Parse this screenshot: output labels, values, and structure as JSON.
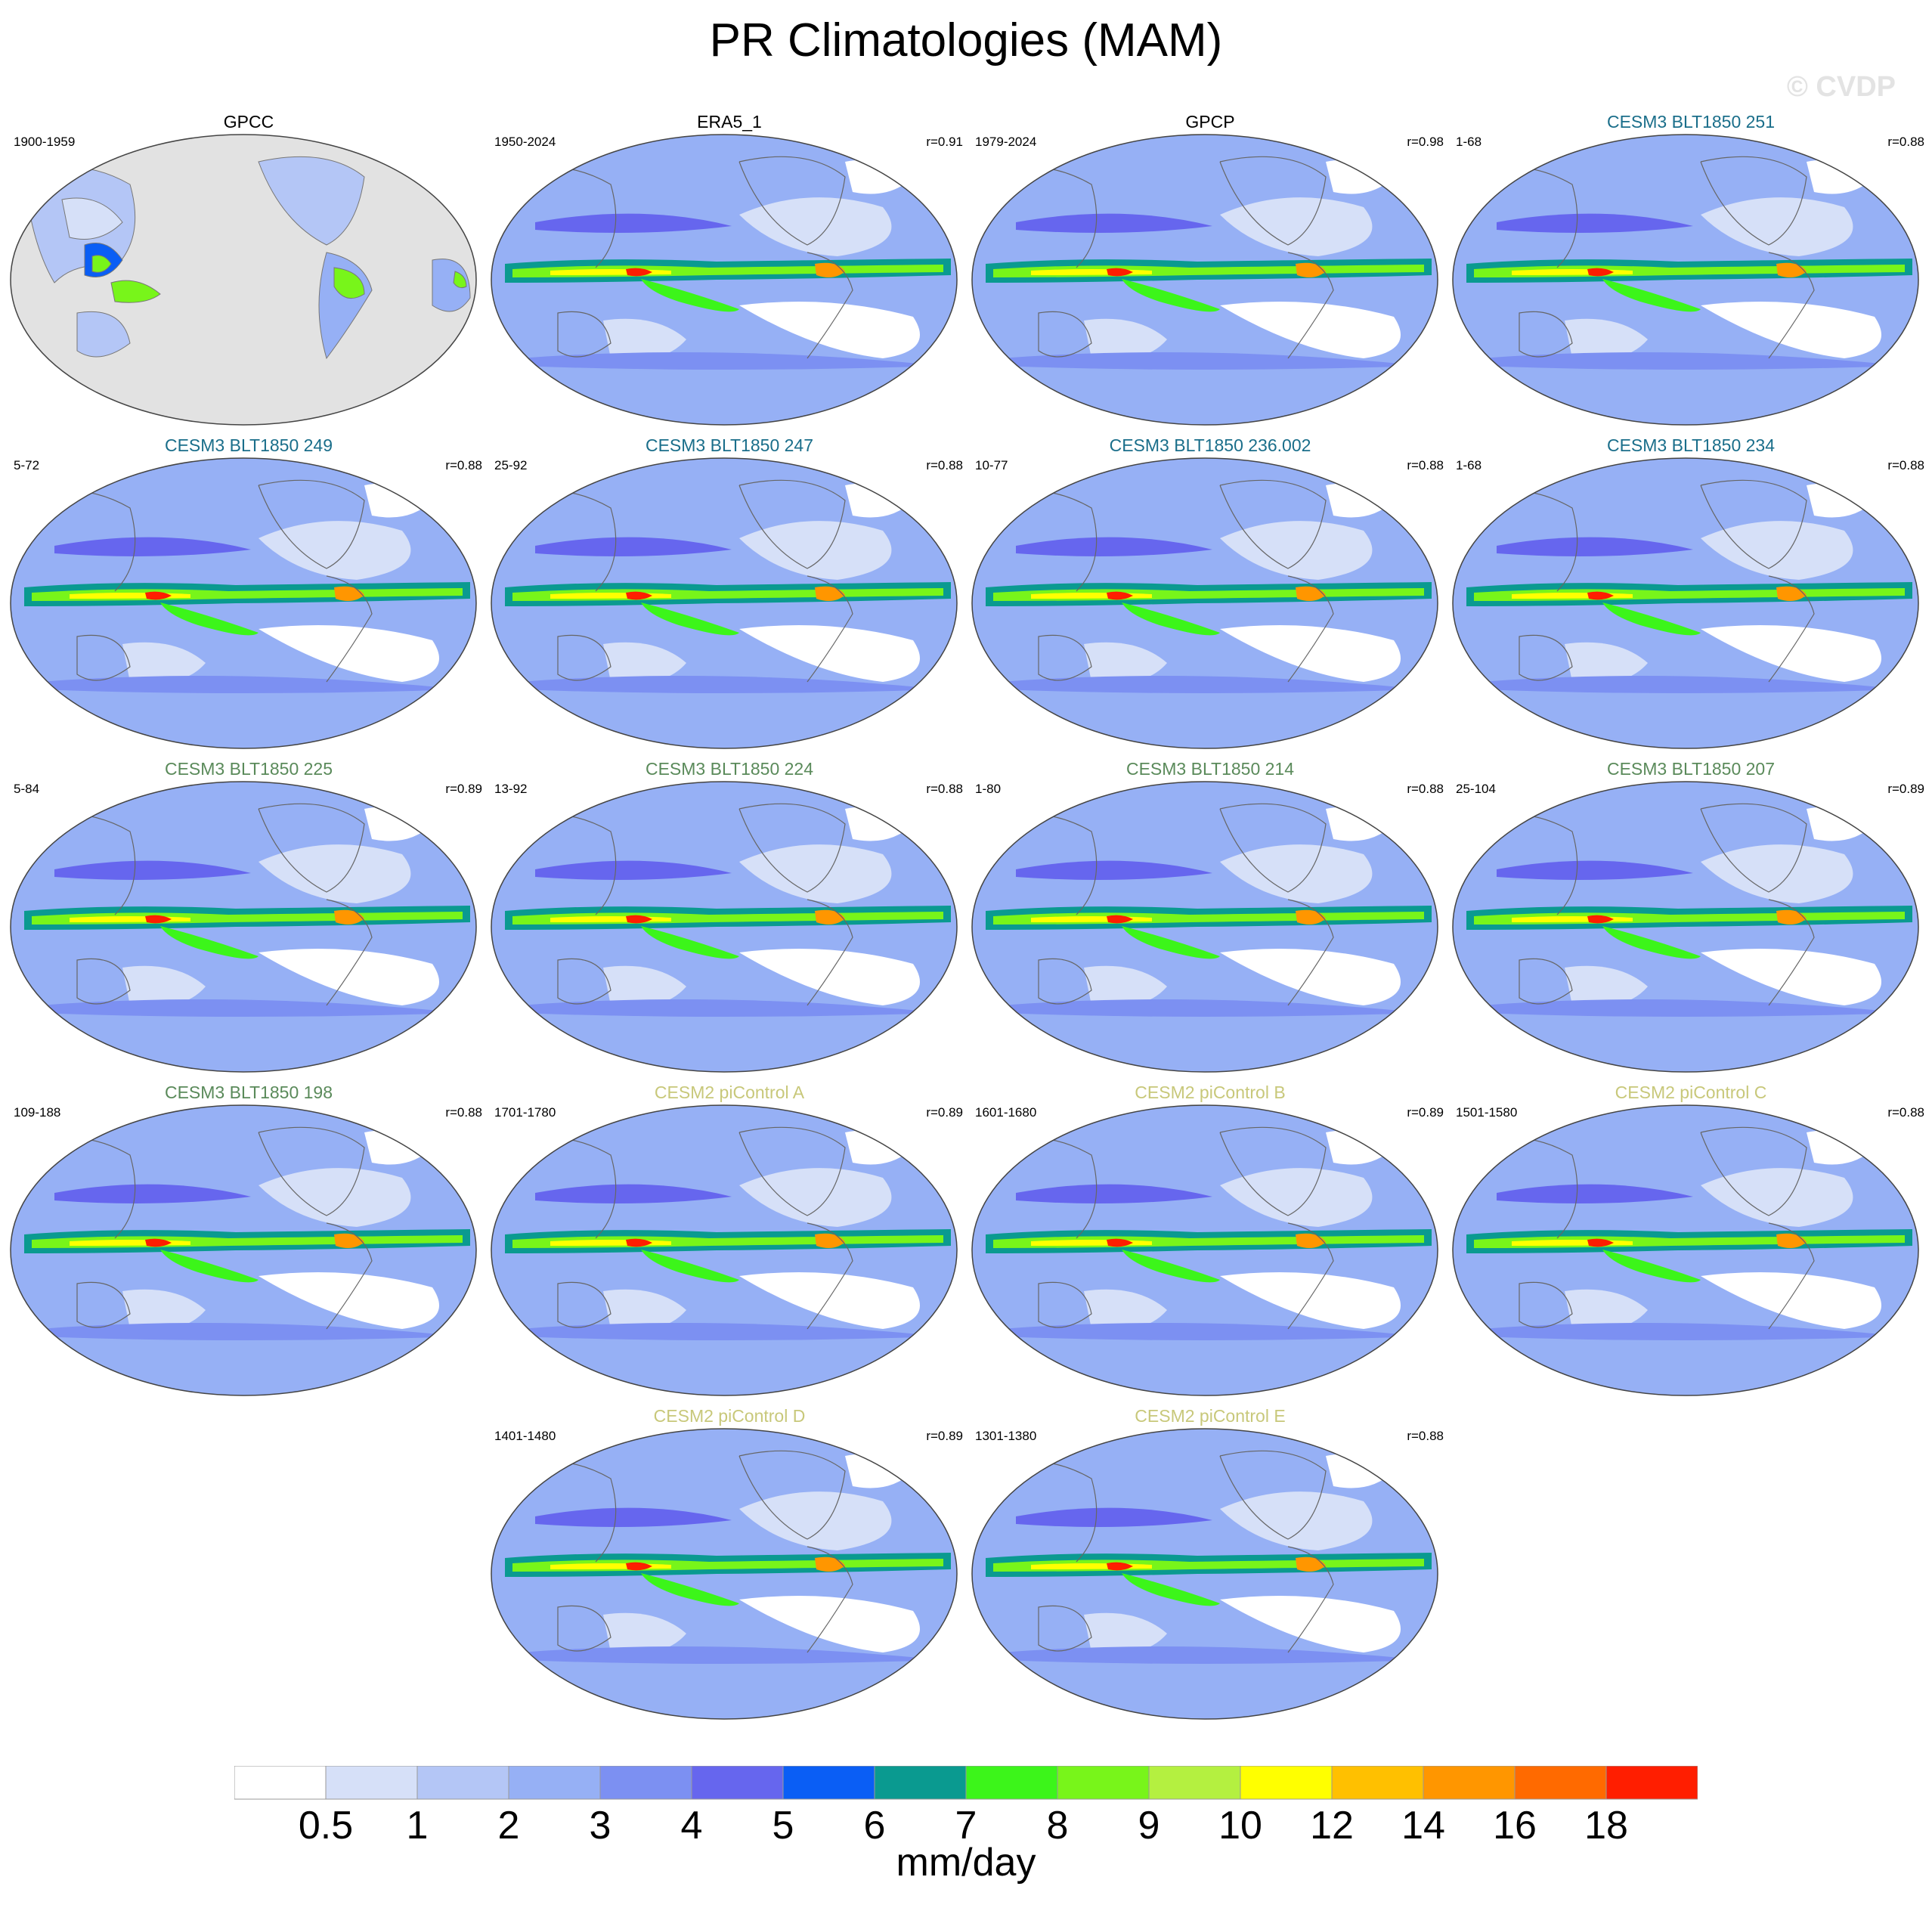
{
  "figure": {
    "title": "PR Climatologies (MAM)",
    "watermark": "© CVDP"
  },
  "chart_data": {
    "type": "heatmap",
    "title": "PR Climatologies (MAM)",
    "variable": "PR",
    "season": "MAM",
    "units": "mm/day",
    "levels": [
      "0.5",
      "1",
      "2",
      "3",
      "4",
      "5",
      "6",
      "7",
      "8",
      "9",
      "10",
      "12",
      "14",
      "16",
      "18"
    ],
    "colors": [
      "#ffffff",
      "#d6e0f8",
      "#b4c6f6",
      "#96b0f5",
      "#7c90f2",
      "#6666ee",
      "#0a5ef5",
      "#0a9a90",
      "#3cf51a",
      "#78f51a",
      "#b4f040",
      "#ffff00",
      "#ffc000",
      "#ff9600",
      "#ff6a00",
      "#ff1e00"
    ],
    "panels": [
      {
        "name": "GPCC",
        "years": "1900-1959",
        "r": "",
        "color": "#000000",
        "land_only": true
      },
      {
        "name": "ERA5_1",
        "years": "1950-2024",
        "r": "r=0.91",
        "color": "#000000"
      },
      {
        "name": "GPCP",
        "years": "1979-2024",
        "r": "r=0.98",
        "color": "#000000"
      },
      {
        "name": "CESM3 BLT1850 251",
        "years": "1-68",
        "r": "r=0.88",
        "color": "#1a6e8a"
      },
      {
        "name": "CESM3 BLT1850 249",
        "years": "5-72",
        "r": "r=0.88",
        "color": "#1a6e8a"
      },
      {
        "name": "CESM3 BLT1850 247",
        "years": "25-92",
        "r": "r=0.88",
        "color": "#1a6e8a"
      },
      {
        "name": "CESM3 BLT1850 236.002",
        "years": "10-77",
        "r": "r=0.88",
        "color": "#1a6e8a"
      },
      {
        "name": "CESM3 BLT1850 234",
        "years": "1-68",
        "r": "r=0.88",
        "color": "#1a6e8a"
      },
      {
        "name": "CESM3 BLT1850 225",
        "years": "5-84",
        "r": "r=0.89",
        "color": "#5a8a5a"
      },
      {
        "name": "CESM3 BLT1850 224",
        "years": "13-92",
        "r": "r=0.88",
        "color": "#5a8a5a"
      },
      {
        "name": "CESM3 BLT1850 214",
        "years": "1-80",
        "r": "r=0.88",
        "color": "#5a8a5a"
      },
      {
        "name": "CESM3 BLT1850 207",
        "years": "25-104",
        "r": "r=0.89",
        "color": "#5a8a5a"
      },
      {
        "name": "CESM3 BLT1850 198",
        "years": "109-188",
        "r": "r=0.88",
        "color": "#5a8a5a"
      },
      {
        "name": "CESM2 piControl A",
        "years": "1701-1780",
        "r": "r=0.89",
        "color": "#c8c87a"
      },
      {
        "name": "CESM2 piControl B",
        "years": "1601-1680",
        "r": "r=0.89",
        "color": "#c8c87a"
      },
      {
        "name": "CESM2 piControl C",
        "years": "1501-1580",
        "r": "r=0.88",
        "color": "#c8c87a"
      },
      {
        "name": "CESM2 piControl D",
        "years": "1401-1480",
        "r": "r=0.89",
        "color": "#c8c87a"
      },
      {
        "name": "CESM2 piControl E",
        "years": "1301-1380",
        "r": "r=0.88",
        "color": "#c8c87a"
      }
    ]
  }
}
